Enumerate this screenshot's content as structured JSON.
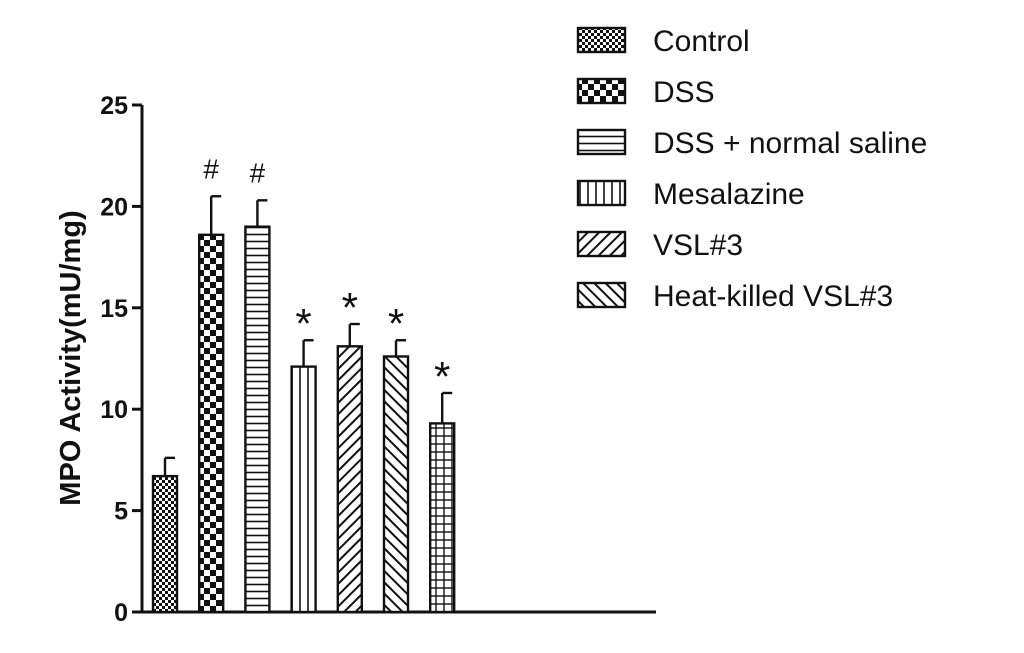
{
  "chart_data": {
    "type": "bar",
    "title": "",
    "xlabel": "",
    "ylabel": "MPO Activity(mU/mg)",
    "ylim": [
      0,
      25
    ],
    "yticks": [
      0,
      5,
      10,
      15,
      20,
      25
    ],
    "grid": false,
    "legend_position": "top-right",
    "categories": [
      "Control",
      "DSS",
      "DSS + normal saline",
      "Mesalazine",
      "VSL#3",
      "Heat-killed VSL#3",
      ""
    ],
    "values": [
      6.7,
      18.6,
      19.0,
      12.1,
      13.1,
      12.6,
      9.3
    ],
    "errors": [
      0.9,
      1.9,
      1.3,
      1.3,
      1.1,
      0.8,
      1.5
    ],
    "annotations": [
      "",
      "#",
      "#",
      "*",
      "*",
      "*",
      "*"
    ],
    "patterns": [
      "fine-check",
      "checker",
      "horizontal",
      "vertical",
      "diag-right",
      "diag-left",
      "grid"
    ]
  }
}
